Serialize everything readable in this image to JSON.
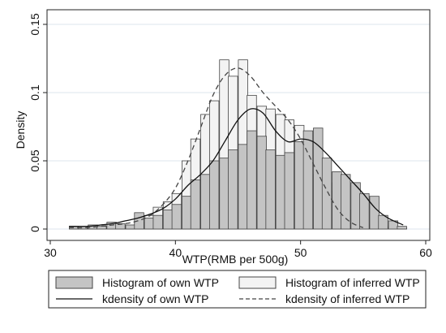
{
  "chart_data": {
    "type": "bar",
    "title": "",
    "xlabel": "WTP(RMB per 500g)",
    "ylabel": "Density",
    "xlim": [
      30,
      60
    ],
    "ylim": [
      0,
      0.15
    ],
    "xticks": [
      30,
      40,
      50,
      60
    ],
    "yticks": [
      0,
      0.05,
      0.1,
      0.15
    ],
    "ytick_labels": [
      "0",
      "0.05",
      "0.1",
      "0.15"
    ],
    "grid": "horizontal",
    "legend_placement": "bottom",
    "colors": {
      "own_bar_fill": "#c4c4c4",
      "inferred_bar_fill": "#f3f3f3",
      "bar_stroke": "#444444",
      "own_line": "#111111",
      "inferred_line": "#444444",
      "grid": "#dde6ee"
    },
    "bin_width": 0.75,
    "series": [
      {
        "name": "Histogram of own WTP",
        "kind": "histogram",
        "x": [
          31.9,
          32.6,
          33.4,
          34.1,
          34.9,
          35.6,
          36.4,
          37.1,
          37.9,
          38.6,
          39.4,
          40.1,
          40.9,
          41.6,
          42.4,
          43.1,
          43.9,
          44.6,
          45.4,
          46.1,
          46.9,
          47.6,
          48.4,
          49.1,
          49.9,
          50.6,
          51.4,
          52.1,
          52.9,
          53.6,
          54.4,
          55.1,
          55.9,
          56.6,
          57.4,
          58.1
        ],
        "values": [
          0.002,
          0.002,
          0.003,
          0.002,
          0.005,
          0.004,
          0.003,
          0.012,
          0.008,
          0.01,
          0.014,
          0.018,
          0.024,
          0.036,
          0.04,
          0.05,
          0.052,
          0.058,
          0.062,
          0.072,
          0.068,
          0.058,
          0.054,
          0.056,
          0.064,
          0.072,
          0.074,
          0.052,
          0.042,
          0.04,
          0.034,
          0.026,
          0.024,
          0.01,
          0.006,
          0.002
        ]
      },
      {
        "name": "Histogram of inferred WTP",
        "kind": "histogram",
        "x": [
          31.9,
          32.6,
          33.4,
          34.1,
          34.9,
          35.6,
          36.4,
          37.1,
          37.9,
          38.6,
          39.4,
          40.1,
          40.9,
          41.6,
          42.4,
          43.1,
          43.9,
          44.6,
          45.4,
          46.1,
          46.9,
          47.6,
          48.4,
          49.1,
          49.9,
          50.6,
          51.4,
          52.1,
          52.9,
          53.6,
          54.4,
          55.1,
          55.9,
          56.6,
          57.4,
          58.1
        ],
        "values": [
          0.001,
          0.001,
          0.002,
          0.001,
          0.002,
          0.003,
          0.002,
          0.005,
          0.01,
          0.016,
          0.02,
          0.026,
          0.05,
          0.066,
          0.084,
          0.094,
          0.124,
          0.112,
          0.124,
          0.098,
          0.09,
          0.088,
          0.084,
          0.08,
          0.076,
          0.054,
          0.04,
          0.034,
          0.028,
          0.014,
          0.008,
          0.004,
          0.003,
          0.002,
          0.001,
          0.001
        ]
      },
      {
        "name": "kdensity of own WTP",
        "kind": "line",
        "style": "solid",
        "x": [
          31.5,
          33,
          34,
          35,
          36,
          37,
          38,
          39,
          40,
          41,
          42,
          43,
          44,
          45,
          46,
          47,
          48,
          49,
          50,
          51,
          52,
          53,
          54,
          55,
          56,
          57,
          58.2
        ],
        "values": [
          0.002,
          0.002,
          0.003,
          0.004,
          0.006,
          0.008,
          0.011,
          0.015,
          0.022,
          0.032,
          0.04,
          0.05,
          0.065,
          0.08,
          0.088,
          0.085,
          0.072,
          0.064,
          0.066,
          0.064,
          0.056,
          0.046,
          0.036,
          0.026,
          0.015,
          0.008,
          0.003
        ]
      },
      {
        "name": "kdensity of inferred WTP",
        "kind": "line",
        "style": "dashed",
        "x": [
          31.5,
          33,
          34,
          35,
          36,
          37,
          38,
          39,
          40,
          41,
          42,
          43,
          44,
          45,
          46,
          47,
          48,
          49,
          50,
          51,
          52,
          53,
          54,
          55
        ],
        "values": [
          0.001,
          0.001,
          0.002,
          0.003,
          0.004,
          0.006,
          0.01,
          0.018,
          0.03,
          0.05,
          0.074,
          0.098,
          0.113,
          0.118,
          0.112,
          0.1,
          0.09,
          0.08,
          0.066,
          0.048,
          0.03,
          0.014,
          0.005,
          0.001
        ]
      }
    ]
  }
}
